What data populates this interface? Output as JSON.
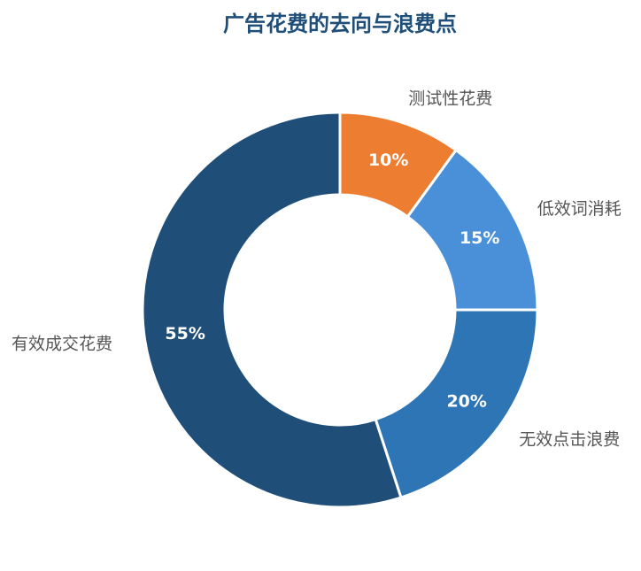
{
  "chart_data": {
    "type": "donut",
    "title": "广告花费的去向与浪费点",
    "categories": [
      "测试性花费",
      "低效词消耗",
      "无效点击浪费",
      "有效成交花费"
    ],
    "values": [
      10,
      15,
      20,
      55
    ],
    "value_labels": [
      "10%",
      "15%",
      "20%",
      "55%"
    ],
    "colors": [
      "#ed7d31",
      "#4a90d9",
      "#2e75b6",
      "#1f4e79"
    ]
  }
}
